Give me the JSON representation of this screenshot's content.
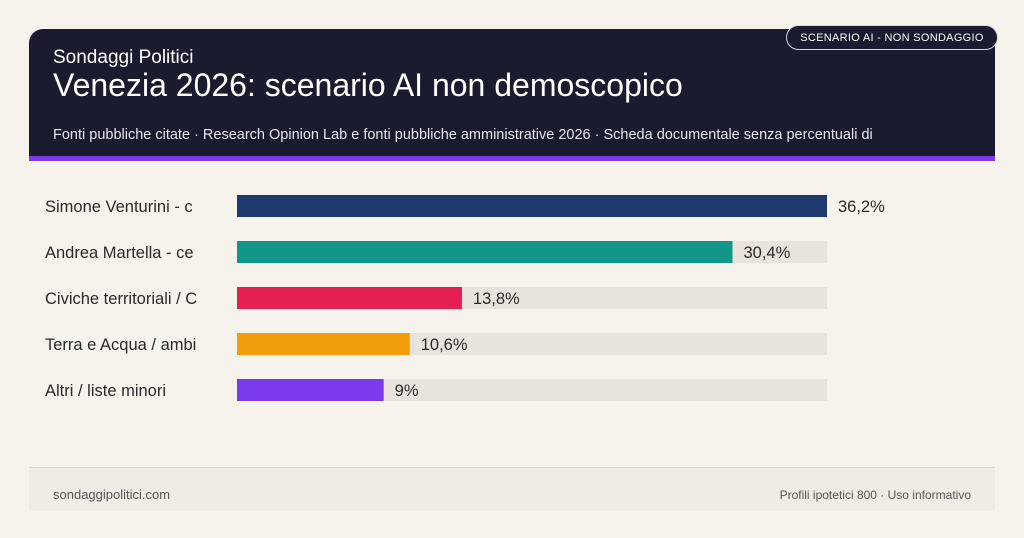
{
  "header": {
    "kicker": "Sondaggi Politici",
    "title": "Venezia 2026: scenario AI non demoscopico",
    "subtitle": "Fonti pubbliche citate · Research Opinion Lab e fonti pubbliche amministrative 2026 · Scheda documentale senza percentuali di",
    "badge": "SCENARIO AI - NON SONDAGGIO"
  },
  "colors": {
    "header_bg": "#1b1b2f",
    "accent": "#7c3aed",
    "track": "#e8e3dc"
  },
  "chart_data": {
    "type": "bar",
    "orientation": "horizontal",
    "categories": [
      "Simone Venturini - c",
      "Andrea Martella - ce",
      "Civiche territoriali / C",
      "Terra e Acqua / ambi",
      "Altri / liste minori"
    ],
    "values": [
      36.2,
      30.4,
      13.8,
      10.6,
      9
    ],
    "value_labels": [
      "36,2%",
      "30,4%",
      "13,8%",
      "10,6%",
      "9%"
    ],
    "colors": [
      "#1f3a6e",
      "#129688",
      "#e3204f",
      "#f29e0c",
      "#7c3aed"
    ],
    "xlim": [
      0,
      36.2
    ],
    "title": "",
    "xlabel": "",
    "ylabel": ""
  },
  "footer": {
    "site": "sondaggipolitici.com",
    "note": "Profili ipotetici 800 · Uso informativo"
  }
}
